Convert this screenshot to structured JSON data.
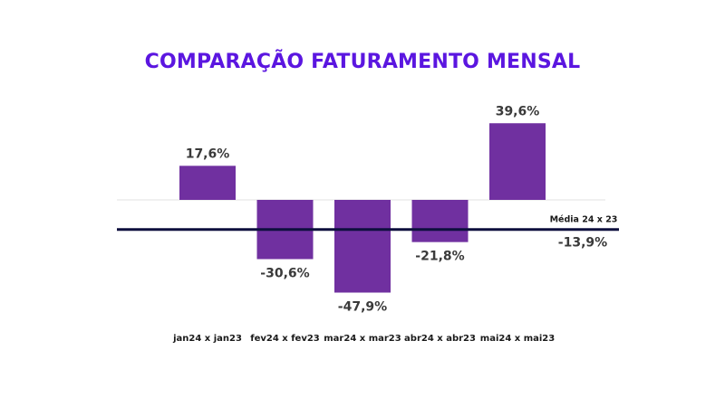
{
  "colors": {
    "title": "#5B16E0",
    "bar": "#7030A0",
    "average_line": "#0D0F3D",
    "zero_line": "#E2E2E2",
    "label": "#3A3A3A"
  },
  "chart_data": {
    "type": "bar",
    "title": "COMPARAÇÃO FATURAMENTO MENSAL",
    "xlabel": "",
    "ylabel": "",
    "categories": [
      "jan24 x jan23",
      "fev24 x fev23",
      "mar24 x mar23",
      "abr24 x abr23",
      "mai24 x mai23"
    ],
    "values": [
      17.6,
      -30.6,
      -47.9,
      -21.8,
      39.6
    ],
    "value_labels": [
      "17,6%",
      "-30,6%",
      "-47,9%",
      "-21,8%",
      "39,6%"
    ],
    "unit": "%",
    "ylim": [
      -50,
      45
    ],
    "grid": false,
    "legend": "none",
    "reference_line": {
      "name": "Média 24 x 23",
      "value": -13.9,
      "label": "-13,9%"
    }
  }
}
